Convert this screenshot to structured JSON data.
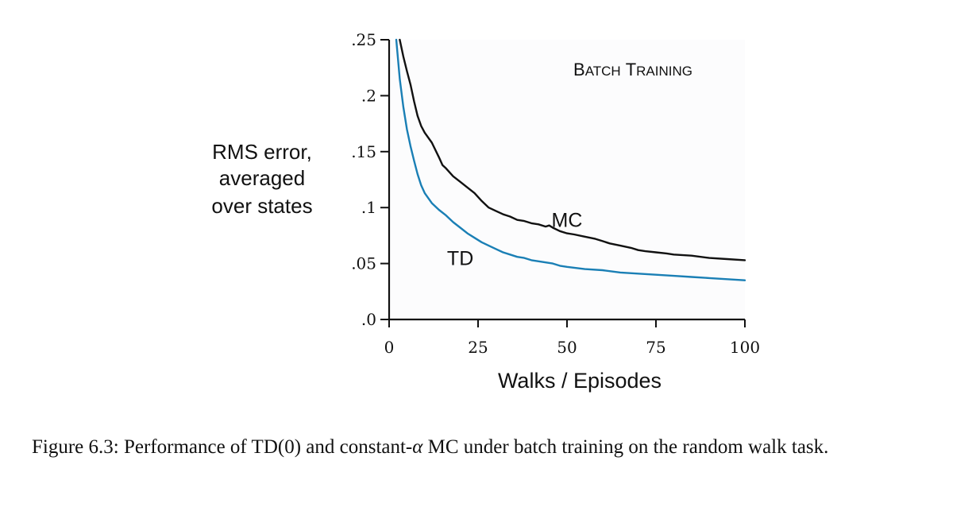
{
  "chart_data": {
    "type": "line",
    "title": "Batch Training",
    "title_parts": {
      "cap1": "B",
      "rest1": "ATCH",
      "cap2": "T",
      "rest2": "RAINING"
    },
    "xlabel": "Walks / Episodes",
    "ylabel_lines": [
      "RMS error,",
      "averaged",
      "over states"
    ],
    "xlim": [
      0,
      100
    ],
    "ylim": [
      0,
      0.25
    ],
    "xticks": [
      0,
      25,
      50,
      75,
      100
    ],
    "xtick_labels": [
      "0",
      "25",
      "50",
      "75",
      "100"
    ],
    "yticks": [
      0,
      0.05,
      0.1,
      0.15,
      0.2,
      0.25
    ],
    "ytick_labels": [
      ".0",
      ".05",
      ".1",
      ".15",
      ".2",
      ".25"
    ],
    "grid": false,
    "series": [
      {
        "name": "MC",
        "color": "#111111",
        "x": [
          3,
          4,
          5,
          6,
          7,
          8,
          9,
          10,
          12,
          14,
          15,
          16,
          18,
          20,
          22,
          24,
          26,
          28,
          30,
          32,
          34,
          36,
          38,
          40,
          42,
          44,
          45,
          46,
          48,
          50,
          52,
          55,
          58,
          60,
          62,
          65,
          68,
          70,
          72,
          75,
          78,
          80,
          85,
          90,
          95,
          100
        ],
        "y": [
          0.25,
          0.235,
          0.222,
          0.21,
          0.195,
          0.182,
          0.173,
          0.167,
          0.158,
          0.145,
          0.138,
          0.135,
          0.128,
          0.123,
          0.118,
          0.113,
          0.106,
          0.1,
          0.097,
          0.094,
          0.092,
          0.089,
          0.088,
          0.086,
          0.085,
          0.083,
          0.084,
          0.082,
          0.079,
          0.077,
          0.076,
          0.074,
          0.072,
          0.07,
          0.068,
          0.066,
          0.064,
          0.062,
          0.061,
          0.06,
          0.059,
          0.058,
          0.057,
          0.055,
          0.054,
          0.053
        ]
      },
      {
        "name": "TD",
        "color": "#1a7fb5",
        "x": [
          2,
          3,
          4,
          5,
          6,
          7,
          8,
          9,
          10,
          12,
          14,
          16,
          18,
          20,
          22,
          24,
          26,
          28,
          30,
          32,
          34,
          36,
          38,
          40,
          42,
          44,
          46,
          48,
          50,
          55,
          60,
          65,
          70,
          75,
          80,
          85,
          90,
          95,
          100
        ],
        "y": [
          0.25,
          0.215,
          0.19,
          0.17,
          0.155,
          0.142,
          0.13,
          0.12,
          0.113,
          0.104,
          0.098,
          0.093,
          0.087,
          0.082,
          0.077,
          0.073,
          0.069,
          0.066,
          0.063,
          0.06,
          0.058,
          0.056,
          0.055,
          0.053,
          0.052,
          0.051,
          0.05,
          0.048,
          0.047,
          0.045,
          0.044,
          0.042,
          0.041,
          0.04,
          0.039,
          0.038,
          0.037,
          0.036,
          0.035
        ]
      }
    ],
    "annotations": [
      {
        "text": "MC",
        "x": 50,
        "y": 0.089
      },
      {
        "text": "TD",
        "x": 20,
        "y": 0.055
      }
    ]
  },
  "caption": {
    "prefix": "Figure 6.3: Performance of TD(0) and constant-",
    "alpha": "α",
    "suffix": " MC under batch training on the random walk task."
  }
}
